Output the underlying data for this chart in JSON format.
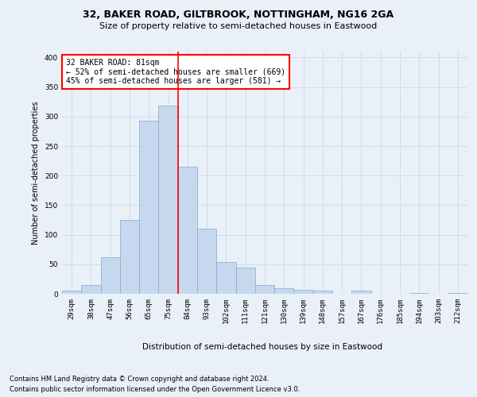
{
  "title": "32, BAKER ROAD, GILTBROOK, NOTTINGHAM, NG16 2GA",
  "subtitle": "Size of property relative to semi-detached houses in Eastwood",
  "xlabel": "Distribution of semi-detached houses by size in Eastwood",
  "ylabel": "Number of semi-detached properties",
  "footnote1": "Contains HM Land Registry data © Crown copyright and database right 2024.",
  "footnote2": "Contains public sector information licensed under the Open Government Licence v3.0.",
  "categories": [
    "29sqm",
    "38sqm",
    "47sqm",
    "56sqm",
    "65sqm",
    "75sqm",
    "84sqm",
    "93sqm",
    "102sqm",
    "111sqm",
    "121sqm",
    "130sqm",
    "139sqm",
    "148sqm",
    "157sqm",
    "167sqm",
    "176sqm",
    "185sqm",
    "194sqm",
    "203sqm",
    "212sqm"
  ],
  "bar_heights": [
    5,
    15,
    62,
    125,
    293,
    318,
    215,
    110,
    54,
    45,
    15,
    10,
    7,
    6,
    0,
    6,
    0,
    0,
    2,
    0,
    2
  ],
  "bar_color": "#c5d8ee",
  "bar_edge_color": "#7aadd4",
  "grid_color": "#d0dce8",
  "vline_color": "red",
  "annotation_text": "32 BAKER ROAD: 81sqm\n← 52% of semi-detached houses are smaller (669)\n45% of semi-detached houses are larger (581) →",
  "annotation_box_color": "white",
  "annotation_box_edge": "red",
  "ylim": [
    0,
    410
  ],
  "yticks": [
    0,
    50,
    100,
    150,
    200,
    250,
    300,
    350,
    400
  ],
  "background_color": "#eaf0f8",
  "title_fontsize": 9,
  "subtitle_fontsize": 8,
  "ylabel_fontsize": 7,
  "xlabel_fontsize": 7.5,
  "tick_fontsize": 6.5,
  "annot_fontsize": 7,
  "footnote_fontsize": 6
}
